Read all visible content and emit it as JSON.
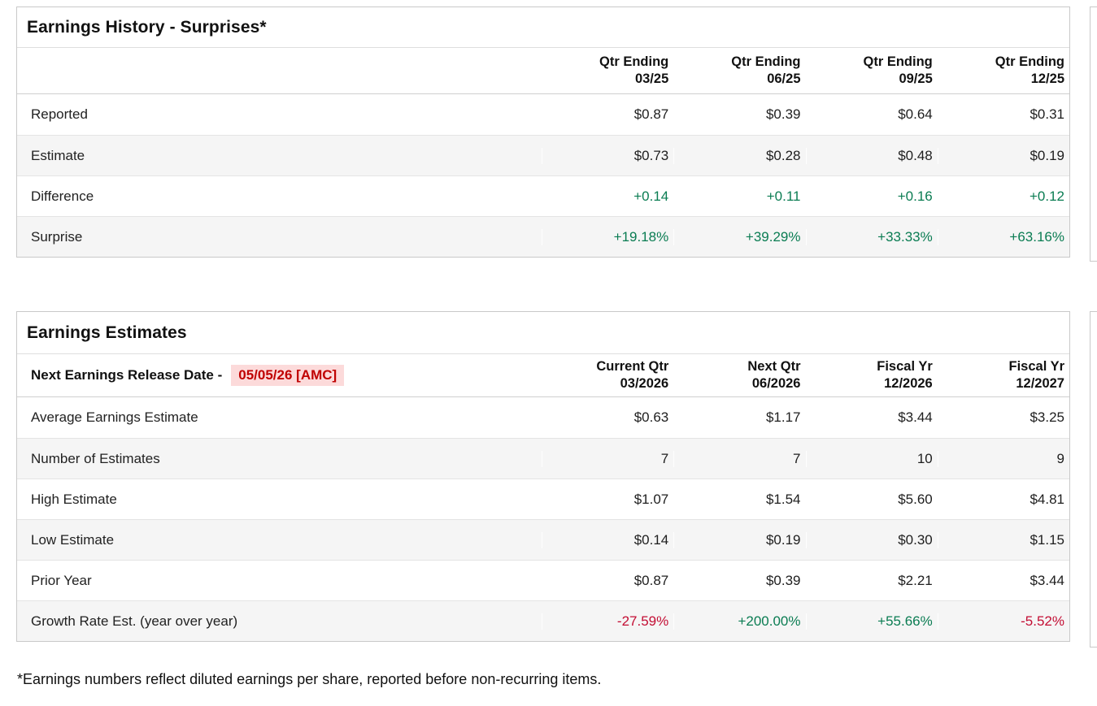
{
  "accent_colors": {
    "positive": "#0a7c52",
    "negative": "#c30d33",
    "date_text": "#c00000",
    "date_bg": "#fcdada"
  },
  "history": {
    "title": "Earnings History - Surprises*",
    "columns": [
      {
        "line1": "Qtr Ending",
        "line2": "03/25"
      },
      {
        "line1": "Qtr Ending",
        "line2": "06/25"
      },
      {
        "line1": "Qtr Ending",
        "line2": "09/25"
      },
      {
        "line1": "Qtr Ending",
        "line2": "12/25"
      }
    ],
    "rows": [
      {
        "label": "Reported",
        "values": [
          "$0.87",
          "$0.39",
          "$0.64",
          "$0.31"
        ]
      },
      {
        "label": "Estimate",
        "values": [
          "$0.73",
          "$0.28",
          "$0.48",
          "$0.19"
        ]
      },
      {
        "label": "Difference",
        "values": [
          "+0.14",
          "+0.11",
          "+0.16",
          "+0.12"
        ]
      },
      {
        "label": "Surprise",
        "values": [
          "+19.18%",
          "+39.29%",
          "+33.33%",
          "+63.16%"
        ]
      }
    ]
  },
  "estimates": {
    "title": "Earnings Estimates",
    "release_label": "Next Earnings Release Date -",
    "release_date": "05/05/26 [AMC]",
    "columns": [
      {
        "line1": "Current Qtr",
        "line2": "03/2026"
      },
      {
        "line1": "Next Qtr",
        "line2": "06/2026"
      },
      {
        "line1": "Fiscal Yr",
        "line2": "12/2026"
      },
      {
        "line1": "Fiscal Yr",
        "line2": "12/2027"
      }
    ],
    "rows": [
      {
        "label": "Average Earnings Estimate",
        "values": [
          "$0.63",
          "$1.17",
          "$3.44",
          "$3.25"
        ]
      },
      {
        "label": "Number of Estimates",
        "values": [
          "7",
          "7",
          "10",
          "9"
        ]
      },
      {
        "label": "High Estimate",
        "values": [
          "$1.07",
          "$1.54",
          "$5.60",
          "$4.81"
        ]
      },
      {
        "label": "Low Estimate",
        "values": [
          "$0.14",
          "$0.19",
          "$0.30",
          "$1.15"
        ]
      },
      {
        "label": "Prior Year",
        "values": [
          "$0.87",
          "$0.39",
          "$2.21",
          "$3.44"
        ]
      },
      {
        "label": "Growth Rate Est. (year over year)",
        "values": [
          "-27.59%",
          "+200.00%",
          "+55.66%",
          "-5.52%"
        ]
      }
    ]
  },
  "footnote": "*Earnings numbers reflect diluted earnings per share, reported before non-recurring items."
}
